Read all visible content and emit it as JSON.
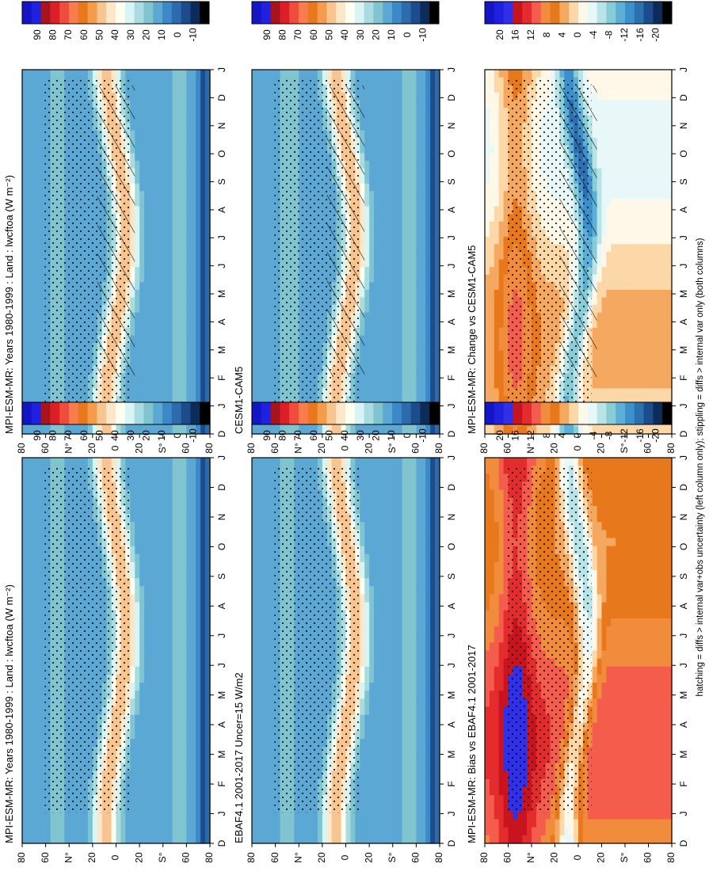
{
  "figure": {
    "footer": "hatching = diffs > internal var+obs uncertainty (left column only); stippling = diffs > internal var only (both columns)"
  },
  "scales": {
    "abs": {
      "labels": [
        "90",
        "80",
        "70",
        "60",
        "50",
        "40",
        "30",
        "20",
        "10",
        "0",
        "-10"
      ],
      "colors": [
        "#1515c8",
        "#2020e0",
        "#a8141e",
        "#dc1e26",
        "#f04c3c",
        "#f87c4c",
        "#e8781c",
        "#f49c4c",
        "#f8c490",
        "#fce8c8",
        "#fffff0",
        "#d8f4f4",
        "#a8dce0",
        "#80c4d0",
        "#5ca8d4",
        "#3c88c8",
        "#2c6cac",
        "#1c4c8c",
        "#0c2c5c",
        "#000000"
      ]
    },
    "diff": {
      "labels": [
        "20",
        "16",
        "12",
        "8",
        "4",
        "0",
        "-4",
        "-8",
        "-12",
        "-16",
        "-20"
      ],
      "colors": [
        "#1515c8",
        "#2020e0",
        "#3030e8",
        "#c8141e",
        "#e42c2c",
        "#f45c4c",
        "#f08c3c",
        "#e8781c",
        "#f4a860",
        "#fcd8a8",
        "#fff8e8",
        "#e8f8f8",
        "#b8e4e8",
        "#88ccd8",
        "#5cb0d8",
        "#3c90cc",
        "#2c70b0",
        "#1c4c8c",
        "#0c2c5c",
        "#000000"
      ]
    }
  },
  "chart_data": [
    {
      "type": "heatmap",
      "title": "MPI-ESM-MR: Years 1980-1999 : Land : lwcftoa (W m⁻²)",
      "xlabel": "",
      "ylabel": "",
      "x": [
        "D",
        "J",
        "F",
        "M",
        "A",
        "M",
        "J",
        "J",
        "A",
        "S",
        "O",
        "N",
        "D",
        "J"
      ],
      "y_ticks": [
        "80",
        "60",
        "N°",
        "20",
        "0",
        "20",
        "S°",
        "60",
        "80"
      ],
      "colorbar": "abs",
      "ylim": [
        -90,
        90
      ]
    },
    {
      "type": "heatmap",
      "title": "MPI-ESM-MR: Years 1980-1999 : Land : lwcftoa (W m⁻²)",
      "xlabel": "",
      "ylabel": "",
      "x": [
        "D",
        "J",
        "F",
        "M",
        "A",
        "M",
        "J",
        "J",
        "A",
        "S",
        "O",
        "N",
        "D",
        "J"
      ],
      "y_ticks": [
        "80",
        "60",
        "N°",
        "20",
        "0",
        "20",
        "S°",
        "60",
        "80"
      ],
      "colorbar": "abs",
      "ylim": [
        -90,
        90
      ]
    },
    {
      "type": "heatmap",
      "title": "EBAF4.1 2001-2017 Uncer=15 W/m2",
      "xlabel": "",
      "ylabel": "",
      "x": [
        "D",
        "J",
        "F",
        "M",
        "A",
        "M",
        "J",
        "J",
        "A",
        "S",
        "O",
        "N",
        "D",
        "J"
      ],
      "y_ticks": [
        "80",
        "60",
        "N°",
        "20",
        "0",
        "20",
        "S°",
        "60",
        "80"
      ],
      "colorbar": "abs",
      "ylim": [
        -90,
        90
      ]
    },
    {
      "type": "heatmap",
      "title": "CESM1-CAM5",
      "xlabel": "",
      "ylabel": "",
      "x": [
        "D",
        "J",
        "F",
        "M",
        "A",
        "M",
        "J",
        "J",
        "A",
        "S",
        "O",
        "N",
        "D",
        "J"
      ],
      "y_ticks": [
        "80",
        "60",
        "N°",
        "20",
        "0",
        "20",
        "S°",
        "60",
        "80"
      ],
      "colorbar": "abs",
      "ylim": [
        -90,
        90
      ]
    },
    {
      "type": "heatmap",
      "title": "MPI-ESM-MR: Bias vs EBAF4.1 2001-2017",
      "xlabel": "",
      "ylabel": "",
      "x": [
        "D",
        "J",
        "F",
        "M",
        "A",
        "M",
        "J",
        "J",
        "A",
        "S",
        "O",
        "N",
        "D",
        "J"
      ],
      "y_ticks": [
        "80",
        "60",
        "N°",
        "20",
        "0",
        "20",
        "S°",
        "60",
        "80"
      ],
      "colorbar": "diff",
      "ylim": [
        -90,
        90
      ]
    },
    {
      "type": "heatmap",
      "title": "MPI-ESM-MR: Change vs CESM1-CAM5",
      "xlabel": "",
      "ylabel": "",
      "x": [
        "D",
        "J",
        "F",
        "M",
        "A",
        "M",
        "J",
        "J",
        "A",
        "S",
        "O",
        "N",
        "D",
        "J"
      ],
      "y_ticks": [
        "80",
        "60",
        "N°",
        "20",
        "0",
        "20",
        "S°",
        "60",
        "80"
      ],
      "colorbar": "diff",
      "ylim": [
        -90,
        90
      ]
    }
  ]
}
